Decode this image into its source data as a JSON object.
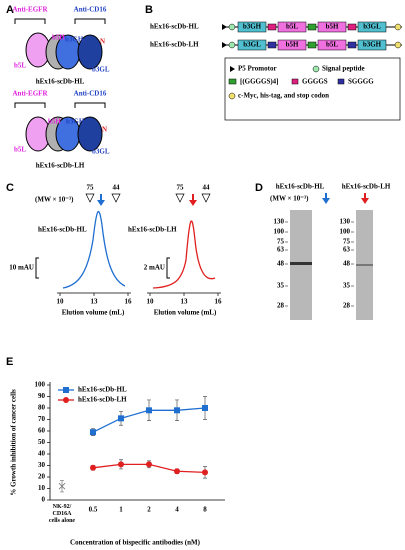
{
  "panel_a": {
    "label": "A",
    "hl": {
      "anti_egfr": "Anti-EGFR",
      "anti_cd16": "Anti-CD16",
      "domains": [
        "b5H",
        "b3GH",
        "b5L",
        "b3GL"
      ],
      "n": "N",
      "name": "hEx16-scDb-HL"
    },
    "lh": {
      "anti_egfr": "Anti-EGFR",
      "anti_cd16": "Anti-CD16",
      "domains": [
        "b5H",
        "b3GH",
        "b5L",
        "b3GL"
      ],
      "n": "N",
      "name": "hEx16-scDb-LH"
    }
  },
  "panel_b": {
    "label": "B",
    "constructs": [
      {
        "name": "hEx16-scDb-HL",
        "domains": [
          "b3GH",
          "b5L",
          "b5H",
          "b3GL"
        ]
      },
      {
        "name": "hEx16-scDb-LH",
        "domains": [
          "b3GL",
          "b5H",
          "b5L",
          "b3GH"
        ]
      }
    ],
    "legend": [
      "P5 Promotor",
      "Signal peptide",
      "[(GGGGS)4]",
      "GGGGS",
      "SGGGG",
      "c-Myc, his-tag, and stop codon"
    ]
  },
  "panel_c": {
    "label": "C",
    "mw_label": "(MW × 10⁻³)",
    "markers": [
      75,
      44
    ],
    "xlabel": "Elution volume (mL)",
    "plots": [
      {
        "name": "hEx16-scDb-HL",
        "scale": "10 mAU",
        "xticks": [
          10,
          13,
          16
        ]
      },
      {
        "name": "hEx16-scDb-LH",
        "scale": "2 mAU",
        "xticks": [
          10,
          13,
          16
        ]
      }
    ]
  },
  "panel_d": {
    "label": "D",
    "mw_label": "(MW × 10⁻³)",
    "lanes": [
      {
        "name": "hEx16-scDb-HL",
        "ladder": [
          130,
          100,
          75,
          63,
          48,
          35,
          28
        ]
      },
      {
        "name": "hEx16-scDb-LH",
        "ladder": [
          130,
          100,
          75,
          63,
          48,
          35,
          28
        ]
      }
    ]
  },
  "chart_data": {
    "type": "line",
    "label": "E",
    "categories": [
      "NK-92/ CD16A cells alone",
      0.5,
      1,
      2,
      4,
      8
    ],
    "series": [
      {
        "name": "hEx16-scDb-HL",
        "color": "#1f6fd1",
        "marker": "square",
        "values": [
          null,
          59,
          71,
          78,
          78,
          80
        ],
        "errors": [
          null,
          3,
          6,
          9,
          9,
          10
        ]
      },
      {
        "name": "hEx16-scDb-LH",
        "color": "#e02020",
        "marker": "circle",
        "values": [
          null,
          28,
          31,
          31,
          25,
          24
        ],
        "errors": [
          null,
          2,
          4,
          3,
          2,
          5
        ]
      },
      {
        "color": "#777777",
        "marker": "x",
        "values": [
          12,
          null,
          null,
          null,
          null,
          null
        ],
        "errors": [
          5,
          null,
          null,
          null,
          null,
          null
        ]
      }
    ],
    "ylabel": "% Growth inhibition of cancer cells",
    "xlabel": "Concentration of bispecific antibodies (nM)",
    "ylim": [
      0,
      100
    ],
    "yticks": [
      0,
      10,
      20,
      30,
      40,
      50,
      60,
      70,
      80,
      90,
      100
    ]
  }
}
